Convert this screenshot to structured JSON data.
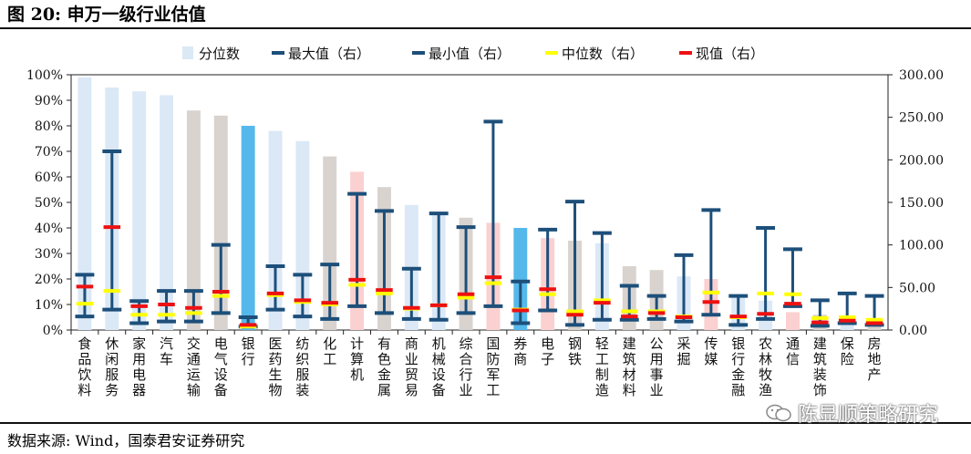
{
  "title": "图 20:  申万一级行业估值",
  "source": "数据来源:    Wind，国泰君安证券研究",
  "watermark": "陈显顺策略研究",
  "chart_data": {
    "type": "bar",
    "title": "",
    "categories": [
      "食品饮料",
      "休闲服务",
      "家用电器",
      "汽车",
      "交通运输",
      "电气设备",
      "银行",
      "医药生物",
      "纺织服装",
      "化工",
      "计算机",
      "有色金属",
      "商业贸易",
      "机械设备",
      "综合行业",
      "国防军工",
      "券商",
      "电子",
      "钢铁",
      "轻工制造",
      "建筑材料",
      "公用事业",
      "采掘",
      "传媒",
      "银行金融",
      "农林牧渔",
      "通信",
      "建筑装饰",
      "保险",
      "房地产"
    ],
    "left_axis": {
      "min": 0,
      "max": 100,
      "step": 10,
      "format": "percent"
    },
    "right_axis": {
      "min": 0,
      "max": 300,
      "step": 50,
      "format": "fixed2"
    },
    "colors": {
      "blue_light": "#dbe8f6",
      "grey": "#d9d3cf",
      "pink": "#fbd0d0",
      "blue_bright": "#55b8ea",
      "navy": "#1d4f7a",
      "yellow": "#ffff00",
      "red": "#ee1111"
    },
    "bar_colors": [
      "blue_light",
      "blue_light",
      "blue_light",
      "blue_light",
      "grey",
      "grey",
      "blue_bright",
      "blue_light",
      "blue_light",
      "grey",
      "pink",
      "grey",
      "blue_light",
      "blue_light",
      "grey",
      "pink",
      "blue_bright",
      "pink",
      "grey",
      "blue_light",
      "grey",
      "grey",
      "blue_light",
      "pink",
      "blue_light",
      "blue_light",
      "pink",
      "grey",
      "blue_light",
      "grey"
    ],
    "series": [
      {
        "name": "分位数",
        "axis": "left",
        "values": [
          99,
          95,
          93.5,
          92,
          86,
          84,
          80,
          78,
          74,
          68,
          62,
          56,
          49,
          45,
          44,
          42,
          40,
          36,
          35,
          34,
          25,
          23.5,
          21,
          20,
          13,
          11.5,
          7,
          6,
          5,
          3
        ]
      },
      {
        "name": "最大值（右）",
        "axis": "right",
        "values": [
          65,
          210,
          34,
          46,
          46,
          100,
          15,
          75,
          65,
          77,
          160,
          140,
          72,
          137,
          121,
          245,
          57,
          118,
          151,
          114,
          52,
          40,
          88,
          141,
          40,
          120,
          95,
          35,
          43,
          40
        ]
      },
      {
        "name": "最小值（右）",
        "axis": "right",
        "values": [
          16,
          24,
          8,
          10,
          10,
          20,
          4,
          24,
          16,
          13,
          28,
          20,
          13,
          12,
          20,
          28,
          8,
          23,
          6,
          12,
          12,
          13,
          10,
          18,
          6,
          13,
          28,
          5,
          8,
          6
        ]
      },
      {
        "name": "中位数（右）",
        "axis": "right",
        "values": [
          31,
          46,
          18,
          18,
          20,
          40,
          4,
          41,
          33,
          30,
          53,
          43,
          25,
          29,
          38,
          55,
          24,
          42,
          22,
          35,
          22,
          22,
          16,
          44,
          15,
          43,
          42,
          14,
          15,
          12
        ]
      },
      {
        "name": "现值（右）",
        "axis": "right",
        "values": [
          51,
          121,
          28,
          30,
          26,
          45,
          6,
          43,
          35,
          32,
          59,
          47,
          26,
          29,
          42,
          62,
          23,
          48,
          18,
          32,
          16,
          20,
          15,
          33,
          16,
          19,
          31,
          9,
          11,
          8
        ]
      }
    ]
  }
}
